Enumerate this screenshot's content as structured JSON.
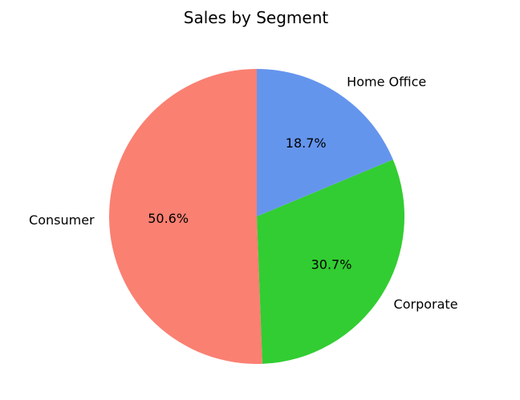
{
  "chart_data": {
    "type": "pie",
    "title": "Sales by Segment",
    "categories": [
      "Consumer",
      "Corporate",
      "Home Office"
    ],
    "values": [
      50.6,
      30.7,
      18.7
    ],
    "value_labels": [
      "50.6%",
      "30.7%",
      "18.7%"
    ],
    "colors": [
      "#fa8072",
      "#32cd32",
      "#6495ed"
    ],
    "start_angle_deg": 90,
    "direction": "counterclockwise",
    "legend": "none"
  }
}
